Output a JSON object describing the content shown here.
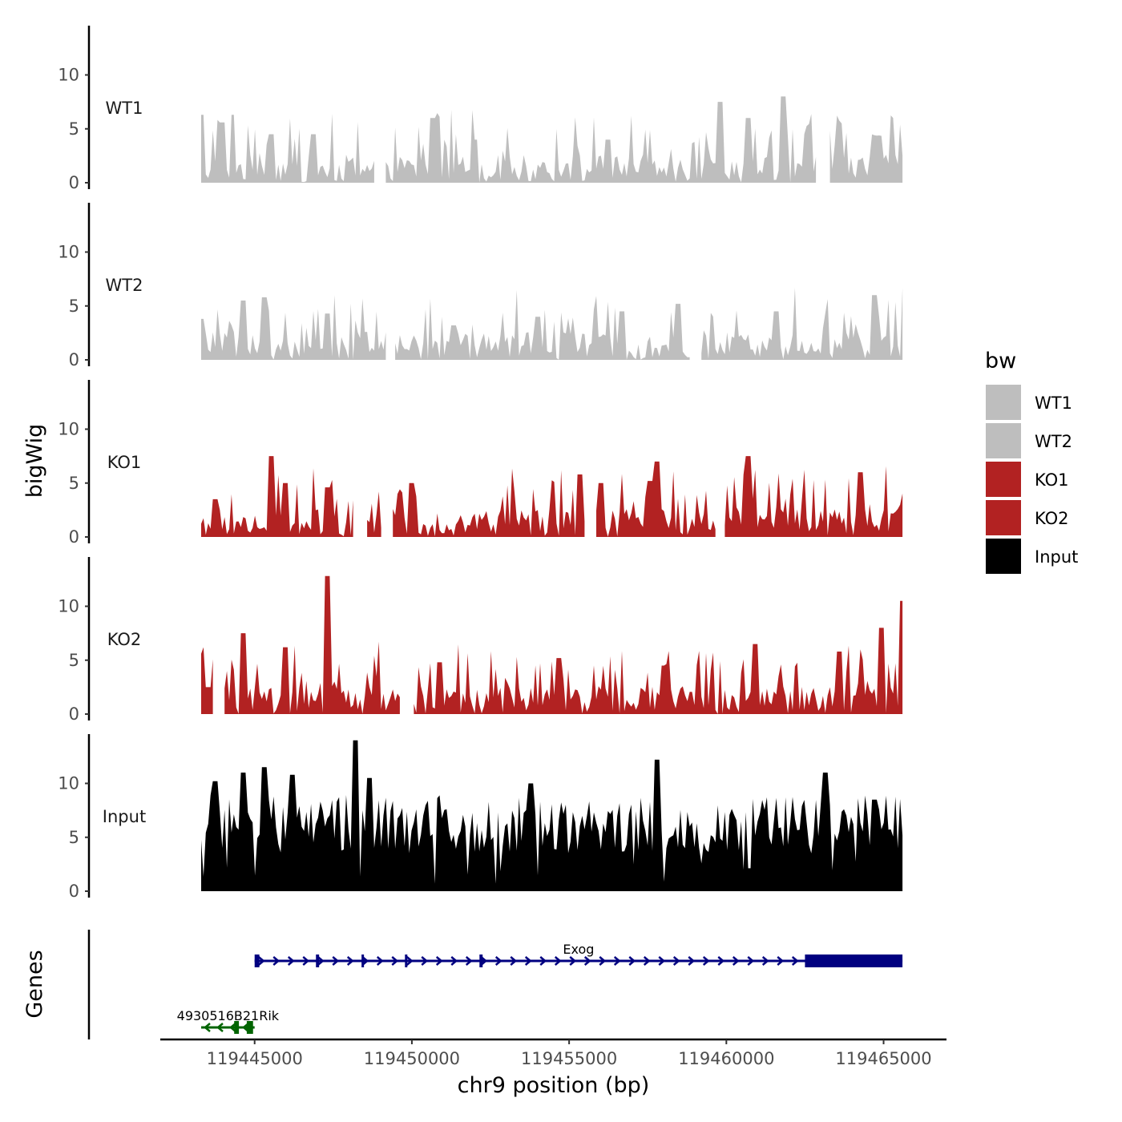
{
  "chart_data": {
    "type": "area",
    "title": "",
    "xlabel": "chr9 position (bp)",
    "ylabel": "bigWig",
    "genes_panel_label": "Genes",
    "xlim": [
      119442000,
      119467000
    ],
    "x_range": [
      119443300,
      119465600
    ],
    "ylim": [
      0,
      14
    ],
    "xticks": [
      119445000,
      119450000,
      119455000,
      119460000,
      119465000
    ],
    "xtick_labels": [
      "119445000",
      "119450000",
      "119455000",
      "119460000",
      "119465000"
    ],
    "yticks": [
      0,
      5,
      10
    ],
    "ytick_labels": [
      "0",
      "5",
      "10"
    ],
    "legend": {
      "title": "bw",
      "position": "right",
      "entries": [
        {
          "label": "WT1",
          "color": "#bebebe"
        },
        {
          "label": "WT2",
          "color": "#bebebe"
        },
        {
          "label": "KO1",
          "color": "#b22222"
        },
        {
          "label": "KO2",
          "color": "#b22222"
        },
        {
          "label": "Input",
          "color": "#000000"
        }
      ]
    },
    "series": [
      {
        "name": "WT1",
        "color": "#bebebe",
        "gaps": [
          [
            0.25,
            0.262
          ],
          [
            0.88,
            0.895
          ]
        ],
        "peaks": [
          [
            0.0,
            6.3
          ],
          [
            0.03,
            5.6
          ],
          [
            0.045,
            6.3
          ],
          [
            0.1,
            4.5
          ],
          [
            0.16,
            4.5
          ],
          [
            0.33,
            6.0
          ],
          [
            0.39,
            4.0
          ],
          [
            0.58,
            4.0
          ],
          [
            0.74,
            7.5
          ],
          [
            0.78,
            6.0
          ],
          [
            0.83,
            8.0
          ],
          [
            0.91,
            5.5
          ],
          [
            0.985,
            6.0
          ]
        ]
      },
      {
        "name": "WT2",
        "color": "#bebebe",
        "gaps": [
          [
            0.265,
            0.275
          ],
          [
            0.7,
            0.71
          ]
        ],
        "peaks": [
          [
            0.0,
            3.8
          ],
          [
            0.06,
            5.5
          ],
          [
            0.09,
            5.8
          ],
          [
            0.18,
            4.3
          ],
          [
            0.36,
            3.2
          ],
          [
            0.48,
            4.0
          ],
          [
            0.6,
            4.5
          ],
          [
            0.68,
            5.2
          ],
          [
            0.82,
            4.5
          ],
          [
            0.96,
            6.0
          ]
        ]
      },
      {
        "name": "KO1",
        "color": "#b22222",
        "gaps": [
          [
            0.22,
            0.235
          ],
          [
            0.26,
            0.272
          ],
          [
            0.55,
            0.56
          ],
          [
            0.735,
            0.745
          ]
        ],
        "peaks": [
          [
            0.02,
            3.5
          ],
          [
            0.1,
            7.5
          ],
          [
            0.12,
            5.0
          ],
          [
            0.18,
            4.6
          ],
          [
            0.3,
            5.0
          ],
          [
            0.54,
            5.8
          ],
          [
            0.57,
            5.0
          ],
          [
            0.64,
            5.2
          ],
          [
            0.65,
            7.0
          ],
          [
            0.78,
            7.5
          ],
          [
            0.94,
            6.0
          ]
        ]
      },
      {
        "name": "KO2",
        "color": "#b22222",
        "gaps": [
          [
            0.02,
            0.03
          ],
          [
            0.285,
            0.3
          ]
        ],
        "peaks": [
          [
            0.01,
            2.5
          ],
          [
            0.06,
            7.5
          ],
          [
            0.12,
            6.2
          ],
          [
            0.18,
            12.8
          ],
          [
            0.25,
            3.5
          ],
          [
            0.34,
            4.8
          ],
          [
            0.51,
            5.2
          ],
          [
            0.66,
            4.5
          ],
          [
            0.79,
            6.5
          ],
          [
            0.91,
            5.8
          ],
          [
            0.97,
            8.0
          ],
          [
            1.0,
            10.5
          ]
        ]
      },
      {
        "name": "Input",
        "color": "#000000",
        "gaps": [],
        "peaks": [
          [
            0.02,
            10.2
          ],
          [
            0.06,
            11.0
          ],
          [
            0.09,
            11.5
          ],
          [
            0.13,
            10.8
          ],
          [
            0.22,
            14.0
          ],
          [
            0.24,
            10.5
          ],
          [
            0.47,
            10.0
          ],
          [
            0.65,
            12.2
          ],
          [
            0.7,
            2.0
          ],
          [
            0.89,
            11.0
          ],
          [
            0.96,
            8.5
          ]
        ]
      }
    ],
    "genes": [
      {
        "name": "Exog",
        "strand": "+",
        "start": 119445000,
        "end": 119465600,
        "color": "#000080",
        "exons": [
          [
            119445000,
            119445150
          ],
          [
            119446950,
            119447050
          ],
          [
            119448400,
            119448470
          ],
          [
            119449780,
            119449840
          ],
          [
            119452150,
            119452250
          ],
          [
            119462500,
            119465600
          ]
        ]
      },
      {
        "name": "4930516B21Rik",
        "strand": "-",
        "start": 119443300,
        "end": 119445000,
        "color": "#006400",
        "exons": [
          [
            119444350,
            119444500
          ],
          [
            119444750,
            119444950
          ]
        ]
      }
    ]
  }
}
